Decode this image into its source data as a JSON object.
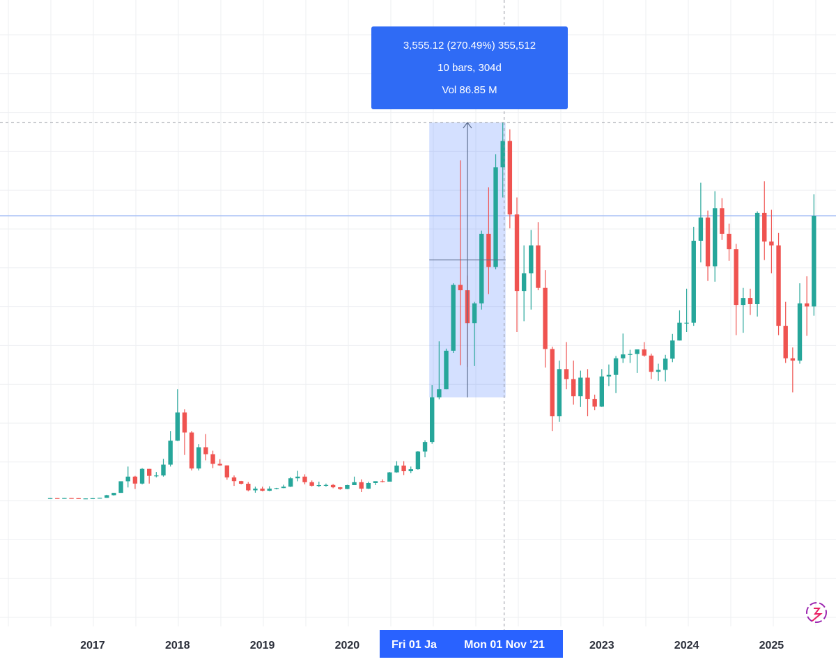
{
  "chart_data": {
    "type": "candlestick",
    "categories": [
      null,
      null,
      null,
      null,
      null,
      null,
      "2017",
      null,
      null,
      null,
      null,
      null,
      null,
      null,
      null,
      null,
      null,
      null,
      "2018",
      null,
      null,
      null,
      null,
      null,
      null,
      null,
      null,
      null,
      null,
      null,
      "2019",
      null,
      null,
      null,
      null,
      null,
      null,
      null,
      null,
      null,
      null,
      null,
      "2020",
      null,
      null,
      null,
      null,
      null,
      null,
      null,
      null,
      null,
      null,
      null,
      null,
      null,
      null,
      null,
      null,
      null,
      null,
      null,
      null,
      null,
      null,
      null,
      null,
      null,
      null,
      null,
      null,
      null,
      null,
      null,
      null,
      null,
      null,
      null,
      "2023",
      null,
      null,
      null,
      null,
      null,
      null,
      null,
      null,
      null,
      null,
      null,
      "2024",
      null,
      null,
      null,
      null,
      null,
      null,
      null,
      null,
      null,
      null,
      null,
      "2025",
      null,
      null,
      null,
      null,
      null,
      null
    ],
    "open": [
      12,
      12,
      11,
      13,
      11,
      8,
      8,
      11,
      16,
      50,
      80,
      230,
      290,
      200,
      390,
      300,
      305,
      445,
      755,
      1120,
      860,
      395,
      670,
      580,
      455,
      435,
      280,
      232,
      198,
      113,
      135,
      107,
      135,
      142,
      160,
      268,
      290,
      218,
      172,
      180,
      182,
      152,
      130,
      180,
      218,
      134,
      207,
      231,
      225,
      345,
      433,
      360,
      386,
      615,
      737,
      1315,
      1420,
      1918,
      2770,
      2700,
      2275,
      2530,
      3430,
      3000,
      4290,
      4630,
      3680,
      2690,
      2920,
      3280,
      2730,
      1940,
      1070,
      1680,
      1550,
      1330,
      1570,
      1295,
      1195,
      1585,
      1605,
      1820,
      1870,
      1875,
      1935,
      1855,
      1645,
      1670,
      1815,
      2050,
      2280,
      2280,
      3340,
      3640,
      3010,
      3760,
      3430,
      3230,
      2510,
      2600,
      2520,
      3700,
      3330,
      3280,
      2240,
      1820,
      1790,
      2530,
      2490
    ],
    "high": [
      14,
      12,
      14,
      13,
      11,
      9,
      11,
      16,
      55,
      80,
      230,
      420,
      300,
      400,
      390,
      350,
      520,
      880,
      1420,
      1160,
      880,
      710,
      840,
      625,
      515,
      435,
      305,
      235,
      220,
      160,
      160,
      165,
      145,
      185,
      285,
      365,
      320,
      240,
      225,
      200,
      195,
      155,
      185,
      290,
      255,
      225,
      230,
      255,
      350,
      490,
      490,
      420,
      620,
      760,
      1475,
      2040,
      1945,
      2790,
      4380,
      2890,
      2550,
      3470,
      4030,
      4460,
      4870,
      4780,
      3900,
      3280,
      3480,
      3580,
      2960,
      1970,
      1790,
      2030,
      1790,
      1660,
      1680,
      1350,
      1680,
      1740,
      1850,
      2140,
      1930,
      1935,
      2030,
      1880,
      1750,
      1865,
      2135,
      2440,
      2720,
      3520,
      4090,
      3730,
      3980,
      3890,
      3560,
      3300,
      2730,
      2720,
      3720,
      4110,
      3740,
      3440,
      2550,
      1960,
      2790,
      2880,
      3940
    ],
    "low": [
      10,
      10,
      11,
      10,
      7,
      6,
      8,
      10,
      16,
      45,
      80,
      150,
      130,
      190,
      200,
      280,
      290,
      420,
      750,
      570,
      370,
      370,
      500,
      400,
      430,
      250,
      170,
      190,
      100,
      82,
      100,
      102,
      125,
      140,
      155,
      230,
      190,
      162,
      155,
      160,
      140,
      120,
      127,
      180,
      90,
      130,
      180,
      215,
      225,
      340,
      310,
      335,
      380,
      540,
      714,
      1290,
      1420,
      1890,
      1730,
      1710,
      1720,
      2450,
      2650,
      2970,
      3900,
      3500,
      2160,
      2300,
      2450,
      2700,
      1700,
      880,
      1000,
      1420,
      1220,
      1190,
      1070,
      1150,
      1190,
      1460,
      1370,
      1760,
      1760,
      1630,
      1840,
      1550,
      1530,
      1520,
      1770,
      2050,
      2160,
      2240,
      3060,
      2820,
      2810,
      3350,
      3080,
      2120,
      2150,
      2380,
      2360,
      3090,
      2920,
      2120,
      1760,
      1380,
      1750,
      2110,
      2370
    ],
    "close": [
      12,
      11,
      13,
      11,
      8,
      8,
      11,
      16,
      50,
      80,
      230,
      290,
      200,
      390,
      300,
      305,
      445,
      755,
      1120,
      860,
      395,
      670,
      580,
      455,
      435,
      280,
      232,
      198,
      113,
      135,
      107,
      135,
      142,
      160,
      268,
      290,
      218,
      172,
      180,
      182,
      152,
      130,
      180,
      218,
      134,
      207,
      231,
      225,
      345,
      433,
      360,
      386,
      615,
      737,
      1315,
      1420,
      1918,
      2770,
      2700,
      2275,
      2530,
      3430,
      3000,
      4290,
      4630,
      3680,
      2690,
      2920,
      3280,
      2730,
      1940,
      1070,
      1680,
      1550,
      1330,
      1570,
      1295,
      1195,
      1585,
      1605,
      1820,
      1870,
      1875,
      1935,
      1855,
      1645,
      1670,
      1815,
      2050,
      2280,
      2280,
      3340,
      3640,
      3010,
      3760,
      3430,
      3230,
      2510,
      2600,
      2520,
      3700,
      3330,
      3280,
      2240,
      1820,
      1790,
      2530,
      2490,
      3663
    ],
    "up_color": "#26a69a",
    "down_color": "#ef5350",
    "ylim": [
      -1647,
      6453
    ],
    "price_line": 3663,
    "measure": {
      "low": 1314.3,
      "high": 4869.4,
      "lines": [
        "3,555.12 (270.49%) 355,512",
        "10 bars, 304d",
        "Vol 86.85 M"
      ]
    },
    "crosshair_labels": [
      "Fri 01 Ja",
      "Mon 01 Nov '21"
    ],
    "grid": true
  }
}
